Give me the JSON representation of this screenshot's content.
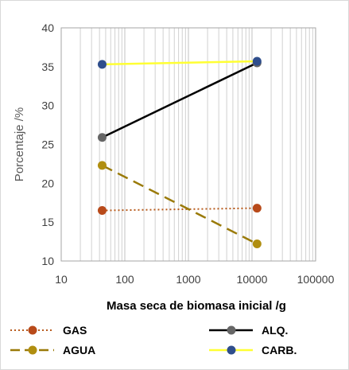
{
  "chart_data": {
    "type": "line",
    "xlabel": "Masa seca de biomasa inicial /g",
    "ylabel": "Porcentaje /%",
    "x_scale": "log",
    "xlim": [
      10,
      100000
    ],
    "ylim": [
      10,
      40
    ],
    "x_ticks": [
      10,
      100,
      1000,
      10000,
      100000
    ],
    "x_tick_labels": [
      "10",
      "100",
      "1000",
      "10000",
      "100000"
    ],
    "y_ticks": [
      10,
      15,
      20,
      25,
      30,
      35,
      40
    ],
    "y_tick_labels": [
      "10",
      "15",
      "20",
      "25",
      "30",
      "35",
      "40"
    ],
    "grid": {
      "x_major": true,
      "x_minor": true,
      "y": false
    },
    "legend_position": "bottom",
    "series": [
      {
        "name": "GAS",
        "x": [
          44,
          12000
        ],
        "values": [
          16.5,
          16.8
        ],
        "color": "#b85c1e",
        "line_style": "dotted",
        "marker_color": "#b84a1a"
      },
      {
        "name": "ALQ.",
        "x": [
          44,
          12000
        ],
        "values": [
          25.9,
          35.5
        ],
        "color": "#000000",
        "line_style": "solid",
        "marker_color": "#666666"
      },
      {
        "name": "AGUA",
        "x": [
          44,
          12000
        ],
        "values": [
          22.3,
          12.2
        ],
        "color": "#9a7a08",
        "line_style": "dashed",
        "marker_color": "#b08e10"
      },
      {
        "name": "CARB.",
        "x": [
          44,
          12000
        ],
        "values": [
          35.3,
          35.7
        ],
        "color": "#ffff33",
        "line_style": "solid",
        "marker_color": "#2f4e8c"
      }
    ]
  }
}
